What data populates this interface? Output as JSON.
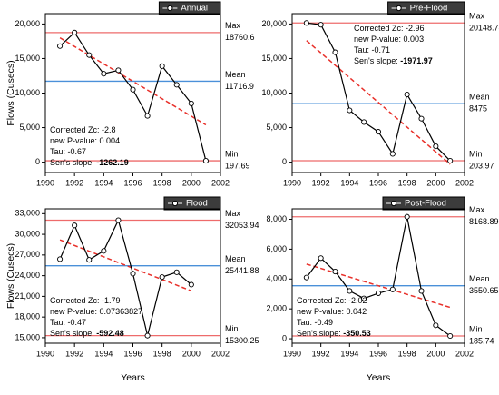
{
  "chart_data": [
    {
      "type": "line",
      "x": [
        1991,
        1992,
        1993,
        1994,
        1995,
        1996,
        1997,
        1998,
        1999,
        2000,
        2001
      ],
      "series": [
        {
          "name": "Annual",
          "color": "#000000",
          "values": [
            16800,
            18760.6,
            15500,
            12800,
            13300,
            10500,
            6700,
            13900,
            11200,
            8500,
            197.69
          ]
        }
      ],
      "trend": {
        "color": "#e8302a",
        "x": [
          1991,
          2001
        ],
        "y": [
          18000,
          5400
        ]
      },
      "ref_lines": [
        {
          "label": "Max",
          "value": 18760.6,
          "color": "#ee6b6b"
        },
        {
          "label": "Mean",
          "value": 11716.9,
          "color": "#4a90d9"
        },
        {
          "label": "Min",
          "value": 197.69,
          "color": "#ee6b6b"
        }
      ],
      "stats": [
        {
          "label": "Corrected Zc:",
          "value": "-2.8"
        },
        {
          "label": "new P-value:",
          "value": "0.004"
        },
        {
          "label": "Tau:",
          "value": "-0.67"
        },
        {
          "label": "Sen's slope:",
          "value": "-1262.19"
        }
      ],
      "stats_corner": "lower left",
      "ylabel": "Flows (Cusecs)",
      "xlim": [
        1990,
        2002
      ],
      "xticks": [
        1990,
        1992,
        1994,
        1996,
        1998,
        2000,
        2002
      ],
      "ylim": [
        -1500,
        21500
      ],
      "yticks": [
        0,
        {
          "value": 5000,
          "label": "5,000"
        },
        {
          "value": 10000,
          "label": "10,000"
        },
        {
          "value": 15000,
          "label": "15,000"
        },
        {
          "value": 20000,
          "label": "20,000"
        }
      ]
    },
    {
      "type": "line",
      "x": [
        1991,
        1992,
        1993,
        1994,
        1995,
        1996,
        1997,
        1998,
        1999,
        2000,
        2001
      ],
      "series": [
        {
          "name": "Pre-Flood",
          "color": "#000000",
          "values": [
            20148.78,
            19900,
            15900,
            7500,
            5800,
            4400,
            1200,
            9800,
            6300,
            2300,
            203.97
          ]
        }
      ],
      "trend": {
        "color": "#e8302a",
        "x": [
          1991,
          2001
        ],
        "y": [
          17600,
          -300
        ]
      },
      "ref_lines": [
        {
          "label": "Max",
          "value": 20148.78,
          "color": "#ee6b6b"
        },
        {
          "label": "Mean",
          "value": 8475,
          "color": "#4a90d9"
        },
        {
          "label": "Min",
          "value": 203.97,
          "color": "#ee6b6b"
        }
      ],
      "stats": [
        {
          "label": "Corrected Zc:",
          "value": "-2.96"
        },
        {
          "label": "new P-value:",
          "value": "0.003"
        },
        {
          "label": "Tau:",
          "value": "-0.71"
        },
        {
          "label": "Sen's slope:",
          "value": "-1971.97"
        }
      ],
      "stats_corner": "upper right",
      "xlim": [
        1990,
        2002
      ],
      "xticks": [
        1990,
        1992,
        1994,
        1996,
        1998,
        2000,
        2002
      ],
      "ylim": [
        -1500,
        21500
      ],
      "yticks": [
        0,
        {
          "value": 5000,
          "label": "5,000"
        },
        {
          "value": 10000,
          "label": "10,000"
        },
        {
          "value": 15000,
          "label": "15,000"
        },
        {
          "value": 20000,
          "label": "20,000"
        }
      ]
    },
    {
      "type": "line",
      "x": [
        1991,
        1992,
        1993,
        1994,
        1995,
        1996,
        1997,
        1998,
        1999,
        2000
      ],
      "series": [
        {
          "name": "Flood",
          "color": "#000000",
          "values": [
            26400,
            31300,
            26300,
            27600,
            32053.94,
            24300,
            15300.25,
            23800,
            24500,
            22700
          ]
        }
      ],
      "trend": {
        "color": "#e8302a",
        "x": [
          1991,
          2000
        ],
        "y": [
          29200,
          21800
        ]
      },
      "ref_lines": [
        {
          "label": "Max",
          "value": 32053.94,
          "color": "#ee6b6b"
        },
        {
          "label": "Mean",
          "value": 25441.88,
          "color": "#4a90d9"
        },
        {
          "label": "Min",
          "value": 15300.25,
          "color": "#ee6b6b"
        }
      ],
      "stats": [
        {
          "label": "Corrected Zc:",
          "value": "-1.79"
        },
        {
          "label": "new P-value:",
          "value": "0.07363827"
        },
        {
          "label": "Tau:",
          "value": "-0.47"
        },
        {
          "label": "Sen's slope:",
          "value": "-592.48"
        }
      ],
      "stats_corner": "lower left",
      "ylabel": "Flows (Cusecs)",
      "xlabel": "Years",
      "xlim": [
        1990,
        2002
      ],
      "xticks": [
        1990,
        1992,
        1994,
        1996,
        1998,
        2000,
        2002
      ],
      "ylim": [
        14200,
        33700
      ],
      "yticks": [
        {
          "value": 15000,
          "label": "15,000"
        },
        {
          "value": 18000,
          "label": "18,000"
        },
        {
          "value": 21000,
          "label": "21,000"
        },
        {
          "value": 24000,
          "label": "24,000"
        },
        {
          "value": 27000,
          "label": "27,000"
        },
        {
          "value": 30000,
          "label": "30,000"
        },
        {
          "value": 33000,
          "label": "33,000"
        }
      ]
    },
    {
      "type": "line",
      "x": [
        1991,
        1992,
        1993,
        1994,
        1995,
        1996,
        1997,
        1998,
        1999,
        2000,
        2001
      ],
      "series": [
        {
          "name": "Post-Flood",
          "color": "#000000",
          "values": [
            4100,
            5400,
            4500,
            3200,
            2700,
            3050,
            3300,
            8168.89,
            3200,
            900,
            185.74
          ]
        }
      ],
      "trend": {
        "color": "#e8302a",
        "x": [
          1991,
          2001
        ],
        "y": [
          5000,
          2100
        ]
      },
      "ref_lines": [
        {
          "label": "Max",
          "value": 8168.89,
          "color": "#ee6b6b"
        },
        {
          "label": "Mean",
          "value": 3550.65,
          "color": "#4a90d9"
        },
        {
          "label": "Min",
          "value": 185.74,
          "color": "#ee6b6b"
        }
      ],
      "stats": [
        {
          "label": "Corrected Zc:",
          "value": "-2.02"
        },
        {
          "label": "new P-value:",
          "value": "0.042"
        },
        {
          "label": "Tau:",
          "value": "-0.49"
        },
        {
          "label": "Sen's slope:",
          "value": "-350.53"
        }
      ],
      "stats_corner": "lower left",
      "xlabel": "Years",
      "xlim": [
        1990,
        2002
      ],
      "xticks": [
        1990,
        1992,
        1994,
        1996,
        1998,
        2000,
        2002
      ],
      "ylim": [
        -300,
        8700
      ],
      "yticks": [
        0,
        {
          "value": 2000,
          "label": "2,000"
        },
        {
          "value": 4000,
          "label": "4,000"
        },
        {
          "value": 6000,
          "label": "6,000"
        },
        {
          "value": 8000,
          "label": "8,000"
        }
      ]
    }
  ]
}
